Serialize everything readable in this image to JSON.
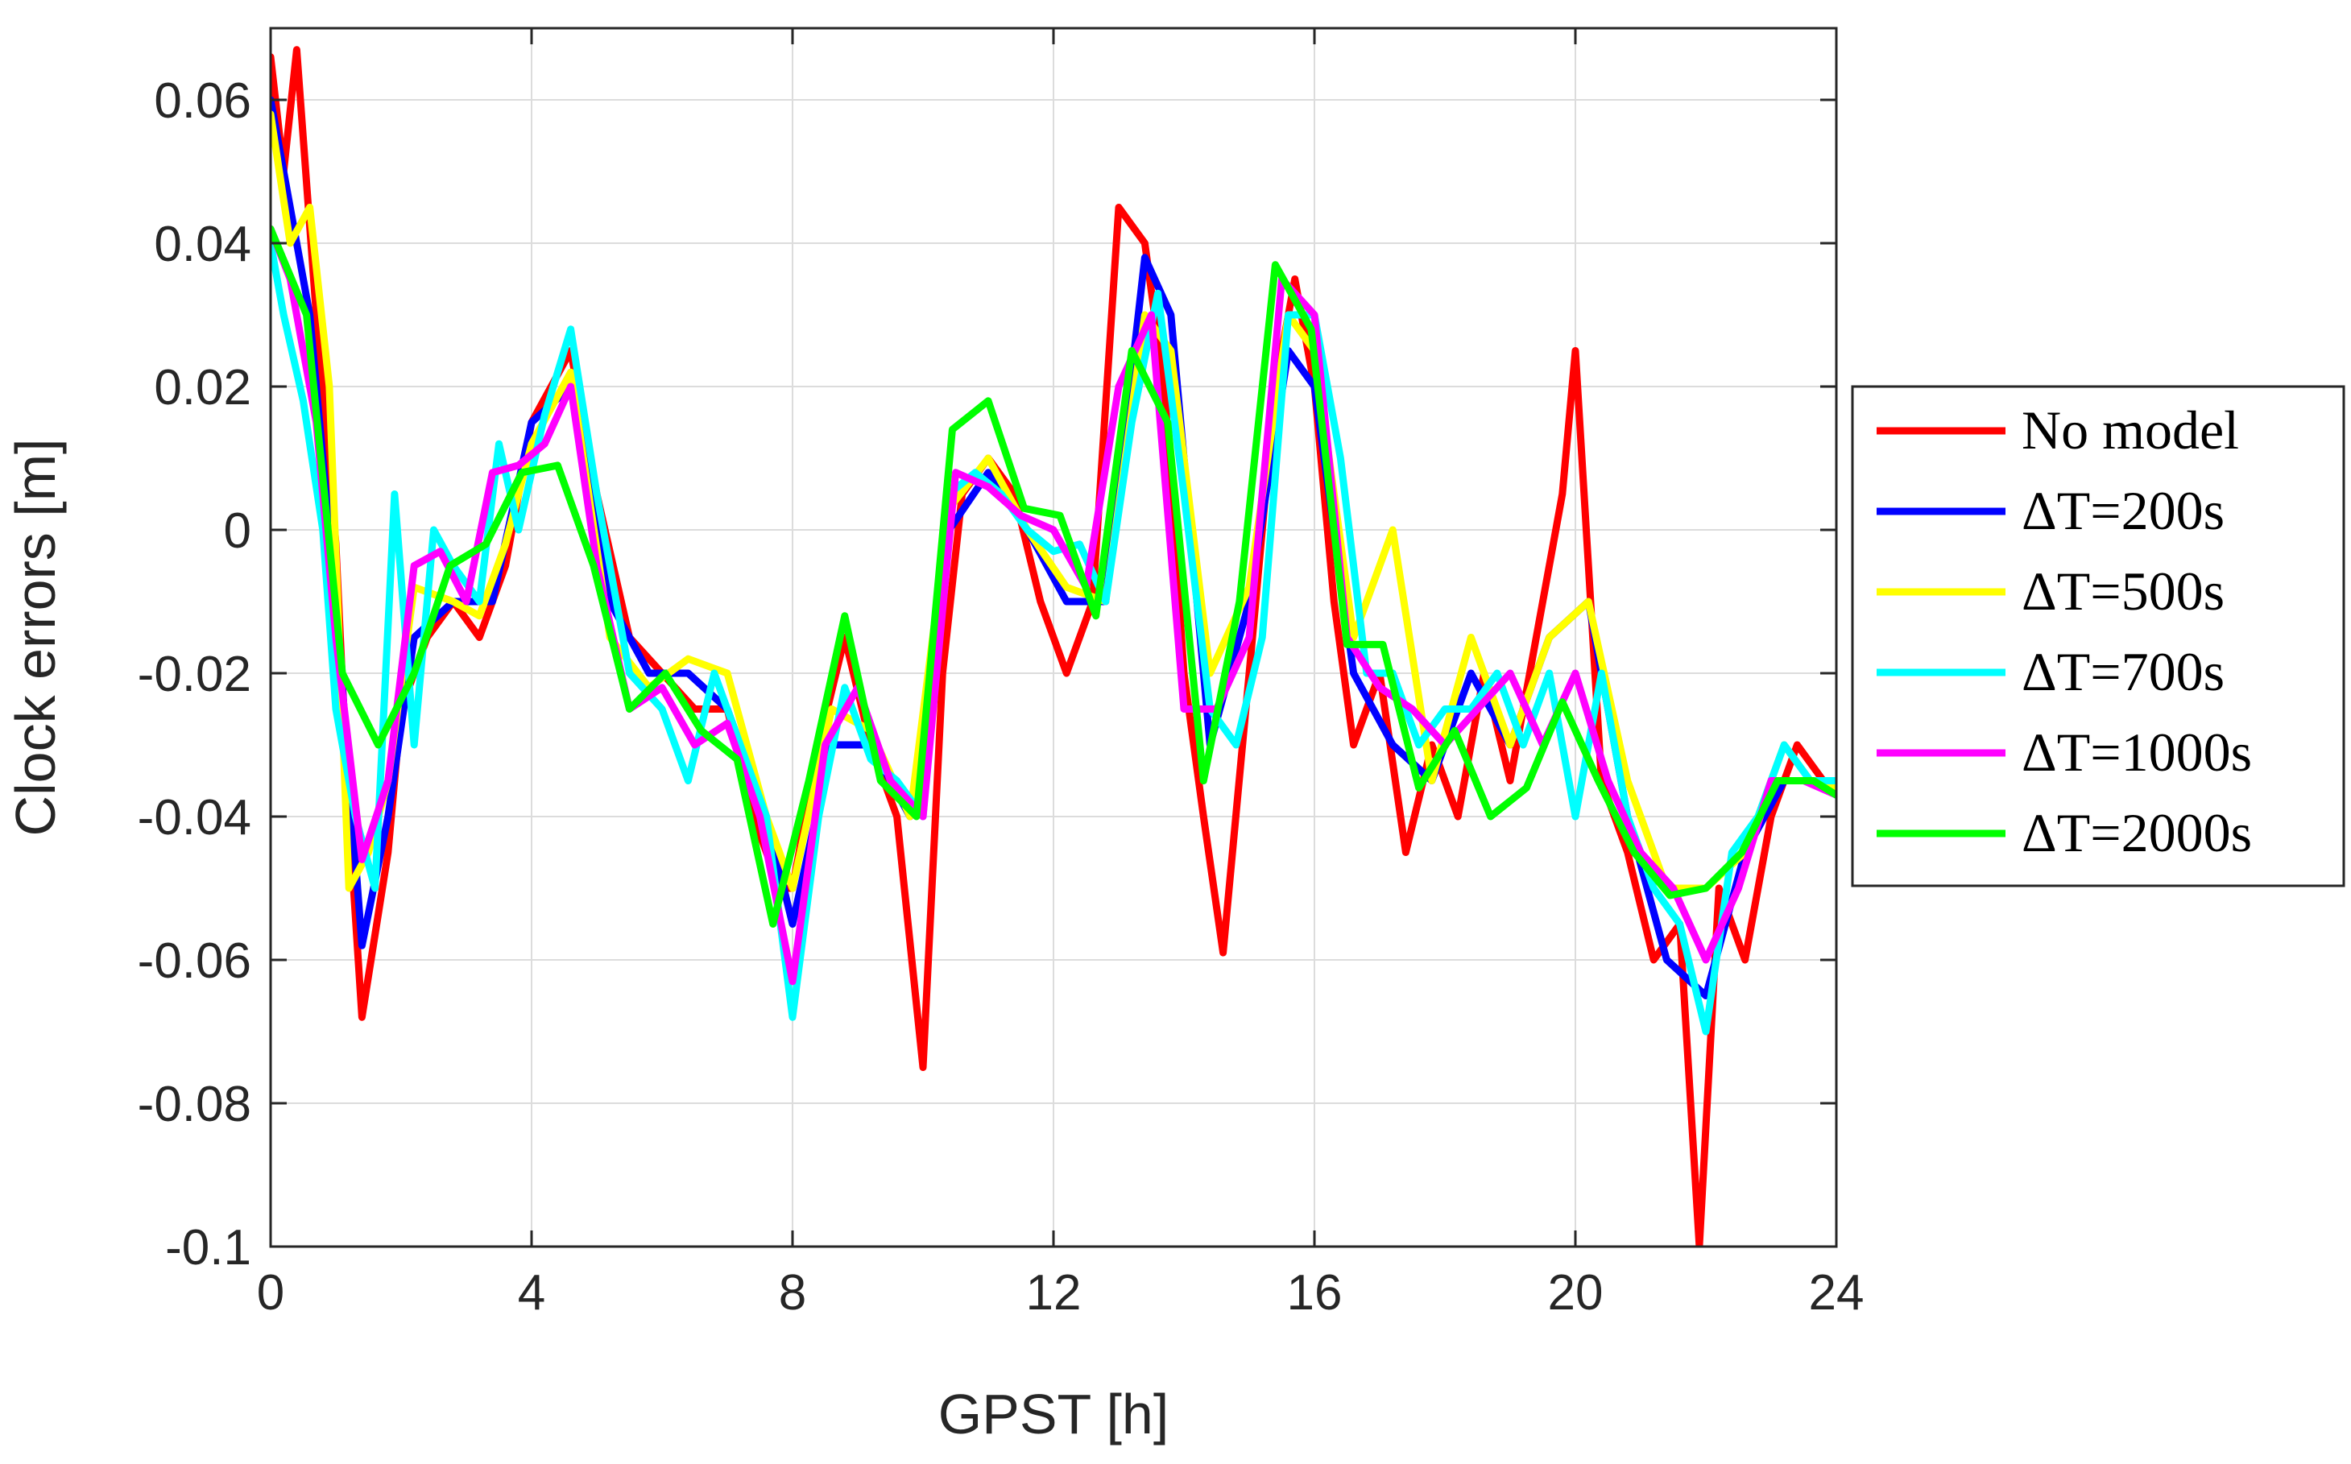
{
  "chart_data": {
    "type": "line",
    "xlabel": "GPST [h]",
    "ylabel": "Clock errors [m]",
    "xlim": [
      0,
      24
    ],
    "ylim": [
      -0.1,
      0.07
    ],
    "xticks": [
      "0",
      "4",
      "8",
      "12",
      "16",
      "20",
      "24"
    ],
    "xtick_values": [
      0,
      4,
      8,
      12,
      16,
      20,
      24
    ],
    "yticks": [
      "0.06",
      "0.04",
      "0.02",
      "0",
      "-0.02",
      "-0.04",
      "-0.06",
      "-0.08",
      "-0.1"
    ],
    "ytick_values": [
      0.06,
      0.04,
      0.02,
      0,
      -0.02,
      -0.04,
      -0.06,
      -0.08,
      -0.1
    ],
    "grid": true,
    "legend_position": "right-outside",
    "series": [
      {
        "name": "No model",
        "color": "#ff0000",
        "x": [
          0,
          0.2,
          0.4,
          0.7,
          1.0,
          1.2,
          1.4,
          1.8,
          2.0,
          2.4,
          2.8,
          3.2,
          3.6,
          4.0,
          4.3,
          4.6,
          5.0,
          5.5,
          6.0,
          6.5,
          7.0,
          7.4,
          7.8,
          8.0,
          8.4,
          8.8,
          9.2,
          9.6,
          10.0,
          10.3,
          10.6,
          11.0,
          11.4,
          11.8,
          12.2,
          12.6,
          13.0,
          13.4,
          13.7,
          14.0,
          14.3,
          14.6,
          15.0,
          15.4,
          15.7,
          16.0,
          16.3,
          16.6,
          17.0,
          17.4,
          17.8,
          18.2,
          18.6,
          19.0,
          19.4,
          19.8,
          20.0,
          20.4,
          20.8,
          21.2,
          21.6,
          21.9,
          22.2,
          22.6,
          23.0,
          23.4,
          23.8,
          24.0
        ],
        "y": [
          0.066,
          0.05,
          0.067,
          0.03,
          -0.002,
          -0.04,
          -0.068,
          -0.045,
          -0.025,
          -0.015,
          -0.01,
          -0.015,
          -0.005,
          0.015,
          0.02,
          0.025,
          0.005,
          -0.015,
          -0.02,
          -0.025,
          -0.025,
          -0.04,
          -0.05,
          -0.05,
          -0.03,
          -0.015,
          -0.03,
          -0.04,
          -0.075,
          -0.02,
          0.005,
          0.01,
          0.005,
          -0.01,
          -0.02,
          -0.01,
          0.045,
          0.04,
          0.02,
          -0.02,
          -0.04,
          -0.059,
          -0.02,
          0.02,
          0.035,
          0.02,
          -0.01,
          -0.03,
          -0.02,
          -0.045,
          -0.03,
          -0.04,
          -0.02,
          -0.035,
          -0.015,
          0.005,
          0.025,
          -0.035,
          -0.045,
          -0.06,
          -0.055,
          -0.1,
          -0.05,
          -0.06,
          -0.04,
          -0.03,
          -0.035,
          -0.035
        ]
      },
      {
        "name": "ΔT=200s",
        "color": "#0000ff",
        "x": [
          0,
          0.3,
          0.6,
          1.0,
          1.4,
          1.8,
          2.2,
          2.8,
          3.4,
          4.0,
          4.6,
          5.2,
          5.8,
          6.4,
          7.0,
          7.6,
          8.0,
          8.6,
          9.2,
          9.8,
          10.4,
          11.0,
          11.6,
          12.2,
          12.8,
          13.4,
          13.8,
          14.4,
          15.0,
          15.6,
          16.0,
          16.6,
          17.2,
          17.8,
          18.4,
          19.0,
          19.6,
          20.2,
          20.8,
          21.4,
          22.0,
          22.6,
          23.2,
          23.6,
          24.0
        ],
        "y": [
          0.06,
          0.045,
          0.03,
          -0.01,
          -0.058,
          -0.04,
          -0.015,
          -0.01,
          -0.01,
          0.015,
          0.02,
          -0.01,
          -0.02,
          -0.02,
          -0.025,
          -0.04,
          -0.055,
          -0.03,
          -0.03,
          -0.04,
          0.0,
          0.008,
          0.0,
          -0.01,
          -0.01,
          0.038,
          0.03,
          -0.03,
          -0.01,
          0.025,
          0.02,
          -0.02,
          -0.03,
          -0.035,
          -0.02,
          -0.03,
          -0.015,
          -0.01,
          -0.04,
          -0.06,
          -0.065,
          -0.045,
          -0.035,
          -0.035,
          -0.037
        ]
      },
      {
        "name": "ΔT=500s",
        "color": "#ffff00",
        "x": [
          0,
          0.3,
          0.6,
          0.9,
          1.2,
          1.5,
          1.8,
          2.2,
          2.8,
          3.2,
          3.6,
          4.0,
          4.6,
          5.2,
          5.8,
          6.4,
          7.0,
          7.6,
          8.0,
          8.6,
          9.2,
          9.8,
          10.4,
          11.0,
          11.6,
          12.2,
          12.8,
          13.4,
          13.8,
          14.4,
          15.0,
          15.6,
          16.0,
          16.6,
          17.2,
          17.8,
          18.4,
          19.0,
          19.6,
          20.2,
          20.8,
          21.4,
          22.0,
          22.6,
          23.2,
          23.6,
          24.0
        ],
        "y": [
          0.058,
          0.04,
          0.045,
          0.02,
          -0.05,
          -0.045,
          -0.035,
          -0.008,
          -0.01,
          -0.012,
          -0.002,
          0.012,
          0.022,
          -0.015,
          -0.022,
          -0.018,
          -0.02,
          -0.04,
          -0.05,
          -0.025,
          -0.028,
          -0.04,
          0.003,
          0.01,
          0.0,
          -0.008,
          -0.01,
          0.03,
          0.025,
          -0.02,
          -0.008,
          0.03,
          0.025,
          -0.015,
          0.0,
          -0.035,
          -0.015,
          -0.03,
          -0.015,
          -0.01,
          -0.035,
          -0.05,
          -0.05,
          -0.045,
          -0.03,
          -0.035,
          -0.036
        ]
      },
      {
        "name": "ΔT=700s",
        "color": "#00ffff",
        "x": [
          0,
          0.2,
          0.5,
          0.8,
          1.0,
          1.3,
          1.6,
          1.9,
          2.2,
          2.5,
          2.8,
          3.2,
          3.5,
          3.8,
          4.2,
          4.6,
          5.0,
          5.5,
          6.0,
          6.4,
          6.8,
          7.2,
          7.6,
          8.0,
          8.4,
          8.8,
          9.2,
          9.6,
          10.0,
          10.4,
          10.8,
          11.2,
          11.6,
          12.0,
          12.4,
          12.8,
          13.2,
          13.6,
          14.0,
          14.4,
          14.8,
          15.2,
          15.6,
          16.0,
          16.4,
          16.8,
          17.2,
          17.6,
          18.0,
          18.4,
          18.8,
          19.2,
          19.6,
          20.0,
          20.4,
          20.8,
          21.2,
          21.6,
          22.0,
          22.4,
          22.8,
          23.2,
          23.6,
          24.0
        ],
        "y": [
          0.04,
          0.03,
          0.018,
          0.0,
          -0.025,
          -0.04,
          -0.05,
          0.005,
          -0.03,
          0.0,
          -0.005,
          -0.01,
          0.012,
          0.0,
          0.016,
          0.028,
          0.005,
          -0.02,
          -0.025,
          -0.035,
          -0.02,
          -0.03,
          -0.04,
          -0.068,
          -0.04,
          -0.022,
          -0.032,
          -0.035,
          -0.04,
          0.005,
          0.008,
          0.005,
          0.0,
          -0.003,
          -0.002,
          -0.01,
          0.015,
          0.033,
          0.005,
          -0.025,
          -0.03,
          -0.015,
          0.03,
          0.03,
          0.01,
          -0.02,
          -0.02,
          -0.03,
          -0.025,
          -0.025,
          -0.02,
          -0.03,
          -0.02,
          -0.04,
          -0.02,
          -0.04,
          -0.05,
          -0.055,
          -0.07,
          -0.045,
          -0.04,
          -0.03,
          -0.035,
          -0.035
        ]
      },
      {
        "name": "ΔT=1000s",
        "color": "#ff00ff",
        "x": [
          0,
          0.3,
          0.7,
          1.0,
          1.4,
          1.8,
          2.2,
          2.6,
          3.0,
          3.4,
          3.8,
          4.2,
          4.6,
          5.0,
          5.5,
          6.0,
          6.5,
          7.0,
          7.5,
          8.0,
          8.5,
          9.0,
          9.5,
          10.0,
          10.5,
          11.0,
          11.5,
          12.0,
          12.5,
          13.0,
          13.5,
          14.0,
          14.5,
          15.0,
          15.5,
          16.0,
          16.5,
          17.0,
          17.5,
          18.0,
          18.5,
          19.0,
          19.5,
          20.0,
          20.5,
          21.0,
          21.5,
          22.0,
          22.5,
          23.0,
          23.5,
          24.0
        ],
        "y": [
          0.042,
          0.035,
          0.015,
          -0.015,
          -0.046,
          -0.035,
          -0.005,
          -0.003,
          -0.01,
          0.008,
          0.009,
          0.012,
          0.02,
          -0.005,
          -0.025,
          -0.022,
          -0.03,
          -0.027,
          -0.04,
          -0.063,
          -0.03,
          -0.022,
          -0.035,
          -0.04,
          0.008,
          0.006,
          0.002,
          0.0,
          -0.008,
          0.02,
          0.03,
          -0.025,
          -0.025,
          -0.015,
          0.035,
          0.03,
          -0.015,
          -0.022,
          -0.025,
          -0.03,
          -0.025,
          -0.02,
          -0.03,
          -0.02,
          -0.035,
          -0.045,
          -0.05,
          -0.06,
          -0.05,
          -0.035,
          -0.035,
          -0.037
        ]
      },
      {
        "name": "ΔT=2000s",
        "color": "#00ff00",
        "x": [
          0,
          0.55,
          1.1,
          1.65,
          2.2,
          2.75,
          3.3,
          3.85,
          4.4,
          4.95,
          5.5,
          6.05,
          6.6,
          7.15,
          7.7,
          8.25,
          8.8,
          9.35,
          9.9,
          10.45,
          11.0,
          11.55,
          12.1,
          12.65,
          13.2,
          13.75,
          14.3,
          14.85,
          15.4,
          15.95,
          16.5,
          17.05,
          17.6,
          18.15,
          18.7,
          19.25,
          19.8,
          20.35,
          20.9,
          21.45,
          22.0,
          22.55,
          23.1,
          23.65,
          24.0
        ],
        "y": [
          0.042,
          0.03,
          -0.02,
          -0.03,
          -0.02,
          -0.005,
          -0.002,
          0.008,
          0.009,
          -0.005,
          -0.025,
          -0.02,
          -0.028,
          -0.032,
          -0.055,
          -0.035,
          -0.012,
          -0.035,
          -0.04,
          0.014,
          0.018,
          0.003,
          0.002,
          -0.012,
          0.025,
          0.015,
          -0.035,
          -0.01,
          0.037,
          0.028,
          -0.016,
          -0.016,
          -0.036,
          -0.028,
          -0.04,
          -0.036,
          -0.024,
          -0.035,
          -0.045,
          -0.051,
          -0.05,
          -0.045,
          -0.035,
          -0.035,
          -0.037
        ]
      }
    ]
  }
}
